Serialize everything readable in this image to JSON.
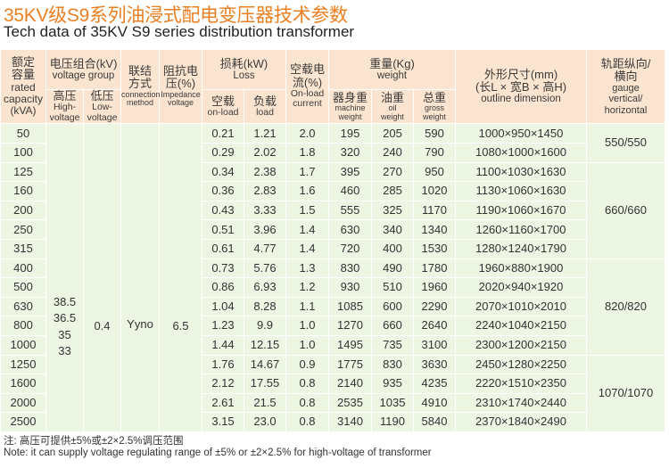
{
  "title_cn": "35KV级S9系列油浸式配电变压器技术参数",
  "title_en": "Tech data of 35KV S9 series distribution transformer",
  "header": {
    "capacity": {
      "cn": "额定容量",
      "en": "rated capacity (kVA)"
    },
    "voltage_group": {
      "cn": "电压组合(kV)",
      "en": "voltage group"
    },
    "high": {
      "cn": "高压",
      "en": "High-voltage"
    },
    "low": {
      "cn": "低压",
      "en": "Low-voltage"
    },
    "connection": {
      "cn": "联结方式",
      "en": "connection method"
    },
    "impedance": {
      "cn": "阻抗电压(%)",
      "en": "Impedance voltage"
    },
    "loss": {
      "cn": "损耗(kW)",
      "en": "Loss"
    },
    "on_load": {
      "cn": "空载",
      "en": "on-load"
    },
    "load": {
      "cn": "负载",
      "en": "load"
    },
    "current": {
      "cn": "空载电流(%)",
      "en": "On-load current"
    },
    "weight": {
      "cn": "重量(Kg)",
      "en": "weight"
    },
    "machine": {
      "cn": "器身重",
      "en": "machine weight"
    },
    "oil": {
      "cn": "油重",
      "en": "oil weight"
    },
    "gross": {
      "cn": "总重",
      "en": "gross weight"
    },
    "dimension": {
      "cn": "外形尺寸(mm)",
      "cn2": "(长L × 宽B × 高H)",
      "en": "outline dimension"
    },
    "gauge": {
      "cn": "轨距纵向/横向",
      "en": "gauge vertical/ horizontal"
    }
  },
  "merged": {
    "high_voltage": [
      "38.5",
      "36.5",
      "35",
      "33"
    ],
    "low_voltage": "0.4",
    "connection": "Yyno",
    "impedance": "6.5"
  },
  "gauge_groups": [
    {
      "value": "550/550",
      "rows": 2
    },
    {
      "value": "660/660",
      "rows": 5
    },
    {
      "value": "820/820",
      "rows": 5
    },
    {
      "value": "1070/1070",
      "rows": 4
    }
  ],
  "rows": [
    [
      "50",
      "0.21",
      "1.21",
      "2.0",
      "195",
      "205",
      "590",
      "1000×950×1450"
    ],
    [
      "100",
      "0.29",
      "2.02",
      "1.8",
      "320",
      "240",
      "790",
      "1080×1000×1600"
    ],
    [
      "125",
      "0.34",
      "2.38",
      "1.7",
      "395",
      "270",
      "950",
      "1100×1030×1630"
    ],
    [
      "160",
      "0.36",
      "2.83",
      "1.6",
      "460",
      "285",
      "1020",
      "1130×1060×1630"
    ],
    [
      "200",
      "0.43",
      "3.33",
      "1.5",
      "555",
      "325",
      "1170",
      "1190×1060×1670"
    ],
    [
      "250",
      "0.51",
      "3.96",
      "1.4",
      "630",
      "340",
      "1340",
      "1260×1160×1700"
    ],
    [
      "315",
      "0.61",
      "4.77",
      "1.4",
      "720",
      "400",
      "1530",
      "1280×1240×1790"
    ],
    [
      "400",
      "0.73",
      "5.76",
      "1.3",
      "830",
      "490",
      "1780",
      "1960×880×1900"
    ],
    [
      "500",
      "0.86",
      "6.93",
      "1.2",
      "930",
      "510",
      "1960",
      "2020×940×1920"
    ],
    [
      "630",
      "1.04",
      "8.28",
      "1.1",
      "1085",
      "600",
      "2290",
      "2070×1010×2010"
    ],
    [
      "800",
      "1.23",
      "9.9",
      "1.0",
      "1270",
      "660",
      "2640",
      "2240×1040×2150"
    ],
    [
      "1000",
      "1.44",
      "12.15",
      "1.0",
      "1495",
      "735",
      "3100",
      "2300×1200×2150"
    ],
    [
      "1250",
      "1.76",
      "14.67",
      "0.9",
      "1775",
      "830",
      "3630",
      "2450×1280×2250"
    ],
    [
      "1600",
      "2.12",
      "17.55",
      "0.8",
      "2140",
      "935",
      "4235",
      "2220×1510×2350"
    ],
    [
      "2000",
      "2.61",
      "21.5",
      "0.8",
      "2535",
      "1035",
      "4910",
      "2310×1740×2440"
    ],
    [
      "2500",
      "3.15",
      "23.0",
      "0.8",
      "3140",
      "1190",
      "5840",
      "2370×1840×2490"
    ]
  ],
  "notes": [
    "注: 高压可提供±5%或±2×2.5%调压范围",
    "Note: it can supply voltage regulating range of ±5% or ±2×2.5% for high-voltage of transformer"
  ],
  "colors": {
    "title": "#ea7f22",
    "header_bg": "#fce5d0",
    "body_bg": "#edf5e3"
  }
}
